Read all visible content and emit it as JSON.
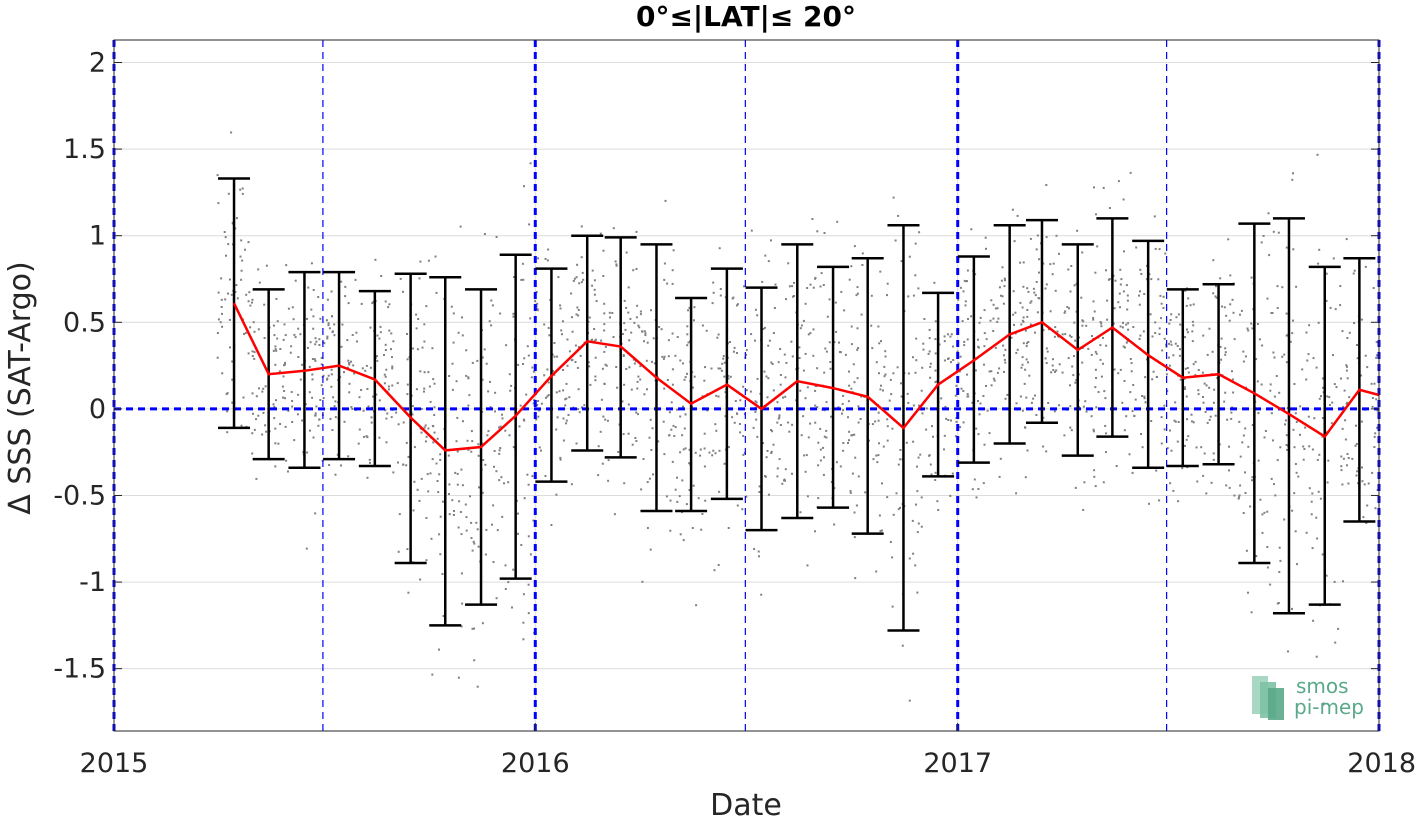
{
  "chart_data": {
    "type": "line",
    "title": "0°≤|LAT|≤ 20°",
    "xlabel": "Date",
    "ylabel": "Δ SSS (SAT-Argo)",
    "xlim": [
      "2015-01-01",
      "2018-01-01"
    ],
    "ylim": [
      -1.86,
      2.13
    ],
    "x_ticks": [
      "2015",
      "2016",
      "2017",
      "2018"
    ],
    "y_ticks": [
      -1.5,
      -1,
      -0.5,
      0,
      0.5,
      1,
      1.5,
      2
    ],
    "y_tick_labels": [
      "-1.5",
      "-1",
      "-0.5",
      "0",
      "0.5",
      "1",
      "1.5",
      "2"
    ],
    "grid": true,
    "reference_lines": {
      "zero_line": 0,
      "year_lines": [
        "2015-01-01",
        "2016-01-01",
        "2017-01-01",
        "2018-01-01"
      ],
      "mid_year_lines": [
        "2015-07-01",
        "2016-07-01",
        "2017-07-01"
      ]
    },
    "colors": {
      "mean_line": "#ff0000",
      "error_bars": "#000000",
      "reference_lines": "#0000ff",
      "scatter": "#808080",
      "logo": "#5aa88a"
    },
    "logo": {
      "line1": "smos",
      "line2": "pi-mep"
    },
    "series": [
      {
        "values": [
          {
            "x": "2015-04-15",
            "y": 0.61,
            "lo": -0.11,
            "hi": 1.33
          },
          {
            "x": "2015-05-15",
            "y": 0.2,
            "lo": -0.29,
            "hi": 0.69
          },
          {
            "x": "2015-06-15",
            "y": 0.22,
            "lo": -0.34,
            "hi": 0.79
          },
          {
            "x": "2015-07-15",
            "y": 0.25,
            "lo": -0.29,
            "hi": 0.79
          },
          {
            "x": "2015-08-15",
            "y": 0.17,
            "lo": -0.33,
            "hi": 0.68
          },
          {
            "x": "2015-09-15",
            "y": -0.05,
            "lo": -0.89,
            "hi": 0.78
          },
          {
            "x": "2015-10-15",
            "y": -0.24,
            "lo": -1.25,
            "hi": 0.76
          },
          {
            "x": "2015-11-15",
            "y": -0.22,
            "lo": -1.13,
            "hi": 0.69
          },
          {
            "x": "2015-12-15",
            "y": -0.04,
            "lo": -0.98,
            "hi": 0.89
          },
          {
            "x": "2016-01-15",
            "y": 0.19,
            "lo": -0.42,
            "hi": 0.81
          },
          {
            "x": "2016-02-15",
            "y": 0.39,
            "lo": -0.24,
            "hi": 1.0
          },
          {
            "x": "2016-03-15",
            "y": 0.36,
            "lo": -0.28,
            "hi": 0.99
          },
          {
            "x": "2016-04-15",
            "y": 0.18,
            "lo": -0.59,
            "hi": 0.95
          },
          {
            "x": "2016-05-15",
            "y": 0.03,
            "lo": -0.59,
            "hi": 0.64
          },
          {
            "x": "2016-06-15",
            "y": 0.14,
            "lo": -0.52,
            "hi": 0.81
          },
          {
            "x": "2016-07-15",
            "y": 0.0,
            "lo": -0.7,
            "hi": 0.7
          },
          {
            "x": "2016-08-15",
            "y": 0.16,
            "lo": -0.63,
            "hi": 0.95
          },
          {
            "x": "2016-09-15",
            "y": 0.12,
            "lo": -0.57,
            "hi": 0.82
          },
          {
            "x": "2016-10-15",
            "y": 0.07,
            "lo": -0.72,
            "hi": 0.87
          },
          {
            "x": "2016-11-15",
            "y": -0.11,
            "lo": -1.28,
            "hi": 1.06
          },
          {
            "x": "2016-12-15",
            "y": 0.14,
            "lo": -0.39,
            "hi": 0.67
          },
          {
            "x": "2017-01-15",
            "y": 0.28,
            "lo": -0.31,
            "hi": 0.88
          },
          {
            "x": "2017-02-15",
            "y": 0.43,
            "lo": -0.2,
            "hi": 1.06
          },
          {
            "x": "2017-03-15",
            "y": 0.5,
            "lo": -0.08,
            "hi": 1.09
          },
          {
            "x": "2017-04-15",
            "y": 0.34,
            "lo": -0.27,
            "hi": 0.95
          },
          {
            "x": "2017-05-15",
            "y": 0.47,
            "lo": -0.16,
            "hi": 1.1
          },
          {
            "x": "2017-06-15",
            "y": 0.31,
            "lo": -0.34,
            "hi": 0.97
          },
          {
            "x": "2017-07-15",
            "y": 0.18,
            "lo": -0.33,
            "hi": 0.69
          },
          {
            "x": "2017-08-15",
            "y": 0.2,
            "lo": -0.32,
            "hi": 0.72
          },
          {
            "x": "2017-09-15",
            "y": 0.09,
            "lo": -0.89,
            "hi": 1.07
          },
          {
            "x": "2017-10-15",
            "y": -0.03,
            "lo": -1.18,
            "hi": 1.1
          },
          {
            "x": "2017-11-15",
            "y": -0.16,
            "lo": -1.13,
            "hi": 0.82
          },
          {
            "x": "2017-12-15",
            "y": 0.11,
            "lo": -0.65,
            "hi": 0.87
          },
          {
            "x": "2018-01-01",
            "y": 0.08
          }
        ]
      }
    ]
  }
}
